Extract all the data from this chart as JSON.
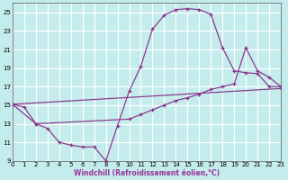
{
  "xlabel": "Windchill (Refroidissement éolien,°C)",
  "bg_color": "#c5eced",
  "grid_color": "#ffffff",
  "line_color": "#883388",
  "xlim": [
    0,
    23
  ],
  "ylim": [
    9,
    26
  ],
  "yticks": [
    9,
    11,
    13,
    15,
    17,
    19,
    21,
    23,
    25
  ],
  "xticks": [
    0,
    1,
    2,
    3,
    4,
    5,
    6,
    7,
    8,
    9,
    10,
    11,
    12,
    13,
    14,
    15,
    16,
    17,
    18,
    19,
    20,
    21,
    22,
    23
  ],
  "curve1_x": [
    0,
    1,
    2,
    3,
    4,
    5,
    6,
    7,
    8,
    9,
    10,
    11,
    12,
    13,
    14,
    15,
    16,
    17,
    18,
    19,
    20,
    21,
    22,
    23
  ],
  "curve1_y": [
    15.1,
    14.8,
    13.0,
    12.5,
    11.0,
    10.7,
    10.5,
    10.5,
    9.0,
    12.8,
    16.5,
    19.2,
    23.2,
    24.7,
    25.3,
    25.4,
    25.3,
    24.8,
    21.2,
    18.7,
    18.5,
    18.4,
    17.0,
    17.0
  ],
  "curve2_x": [
    0,
    2,
    10,
    11,
    12,
    13,
    14,
    15,
    16,
    17,
    18,
    19,
    20,
    21,
    22,
    23
  ],
  "curve2_y": [
    15.1,
    13.0,
    13.5,
    14.0,
    14.5,
    15.0,
    15.5,
    15.8,
    16.2,
    16.7,
    17.0,
    17.3,
    21.2,
    18.7,
    18.0,
    17.0
  ],
  "curve3_x": [
    0,
    23
  ],
  "curve3_y": [
    15.1,
    16.8
  ]
}
